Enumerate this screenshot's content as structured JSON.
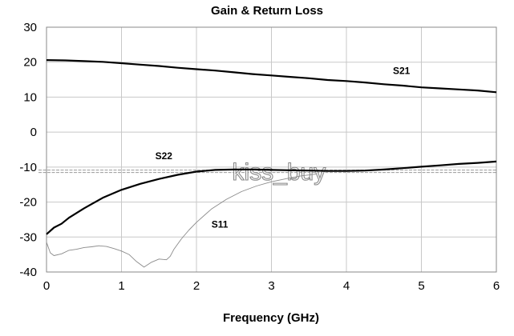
{
  "chart_data": {
    "type": "line",
    "title": "Gain & Return Loss",
    "xlabel": "Frequency (GHz)",
    "ylabel": "",
    "xlim": [
      0,
      6
    ],
    "ylim": [
      -40,
      30
    ],
    "xticks": [
      0,
      1,
      2,
      3,
      4,
      5,
      6
    ],
    "yticks": [
      30,
      20,
      10,
      0,
      -10,
      -20,
      -30,
      -40
    ],
    "grid": true,
    "series": [
      {
        "name": "S21",
        "color": "#000000",
        "x": [
          0,
          0.25,
          0.5,
          0.75,
          1,
          1.25,
          1.5,
          1.75,
          2,
          2.25,
          2.5,
          2.75,
          3,
          3.25,
          3.5,
          3.75,
          4,
          4.25,
          4.5,
          4.75,
          5,
          5.25,
          5.5,
          5.75,
          6
        ],
        "y": [
          20.6,
          20.5,
          20.3,
          20.1,
          19.7,
          19.3,
          18.9,
          18.4,
          18.0,
          17.6,
          17.1,
          16.6,
          16.2,
          15.8,
          15.4,
          14.9,
          14.6,
          14.2,
          13.7,
          13.3,
          12.8,
          12.5,
          12.2,
          11.9,
          11.4
        ]
      },
      {
        "name": "S22",
        "color": "#000000",
        "x": [
          0,
          0.1,
          0.2,
          0.3,
          0.5,
          0.75,
          1,
          1.25,
          1.5,
          1.75,
          2,
          2.25,
          2.5,
          2.75,
          3,
          3.25,
          3.5,
          3.75,
          4,
          4.25,
          4.5,
          4.75,
          5,
          5.25,
          5.5,
          5.75,
          6
        ],
        "y": [
          -29.2,
          -27.3,
          -26.2,
          -24.5,
          -21.8,
          -18.8,
          -16.5,
          -14.8,
          -13.4,
          -12.2,
          -11.3,
          -10.8,
          -10.7,
          -10.7,
          -10.8,
          -10.9,
          -11.0,
          -11.1,
          -11.1,
          -11.0,
          -10.7,
          -10.3,
          -9.9,
          -9.5,
          -9.1,
          -8.8,
          -8.4
        ]
      },
      {
        "name": "S11",
        "color": "#8a8a8a",
        "x": [
          0,
          0.05,
          0.1,
          0.2,
          0.3,
          0.4,
          0.5,
          0.6,
          0.7,
          0.8,
          0.9,
          1.0,
          1.1,
          1.2,
          1.3,
          1.4,
          1.5,
          1.6,
          1.65,
          1.7,
          1.8,
          1.9,
          2.0,
          2.2,
          2.4,
          2.6,
          2.8,
          3.0,
          3.2,
          3.4,
          3.6
        ],
        "y": [
          -31.5,
          -34.5,
          -35.3,
          -34.8,
          -33.8,
          -33.5,
          -33.0,
          -32.8,
          -32.5,
          -32.7,
          -33.3,
          -34.0,
          -35.0,
          -37.0,
          -38.6,
          -37.2,
          -36.3,
          -36.5,
          -35.5,
          -33.5,
          -30.5,
          -28.0,
          -25.8,
          -22.0,
          -19.2,
          -17.0,
          -15.4,
          -14.2,
          -13.3,
          -12.5,
          -12.0
        ]
      }
    ],
    "annotations": [
      {
        "text": "S21",
        "x": 4.62,
        "y": 16.6
      },
      {
        "text": "S22",
        "x": 1.45,
        "y": -7.7
      },
      {
        "text": "S11",
        "x": 2.2,
        "y": -27.3
      }
    ],
    "watermark": {
      "text": "kiss_buy",
      "x": 3.1,
      "y": -11.2
    }
  }
}
